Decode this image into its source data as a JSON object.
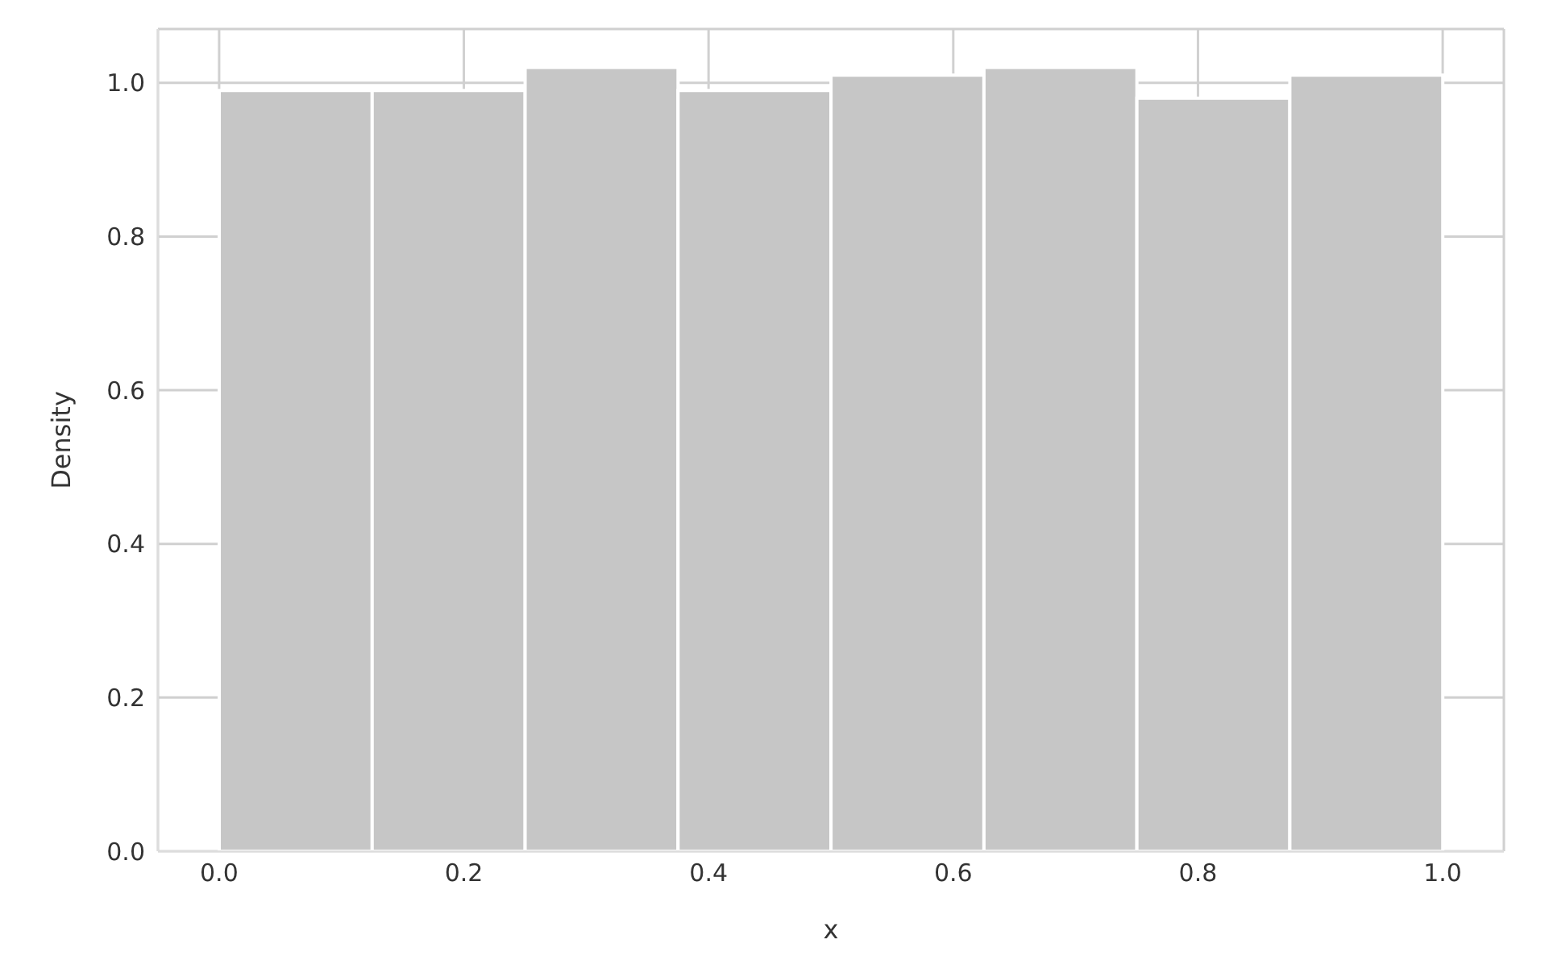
{
  "chart_data": {
    "type": "histogram",
    "xlabel": "x",
    "ylabel": "Density",
    "bins": [
      0,
      0.125,
      0.25,
      0.375,
      0.5,
      0.625,
      0.75,
      0.875,
      1
    ],
    "values": [
      0.99,
      0.99,
      1.02,
      0.99,
      1.01,
      1.02,
      0.98,
      1.01
    ],
    "color": "#c6c6c6",
    "xlim": [
      -0.05,
      1.05
    ],
    "xticks": [
      {
        "value": 0,
        "label": "0.0"
      },
      0.2,
      0.4,
      0.6,
      0.8,
      {
        "value": 1,
        "label": "1.0"
      }
    ],
    "ylim": [
      0,
      1.07
    ],
    "yticks": [
      {
        "value": 0,
        "label": "0.0"
      },
      0.2,
      0.4,
      0.6,
      0.8,
      {
        "value": 1,
        "label": "1.0"
      }
    ],
    "grid": true
  }
}
